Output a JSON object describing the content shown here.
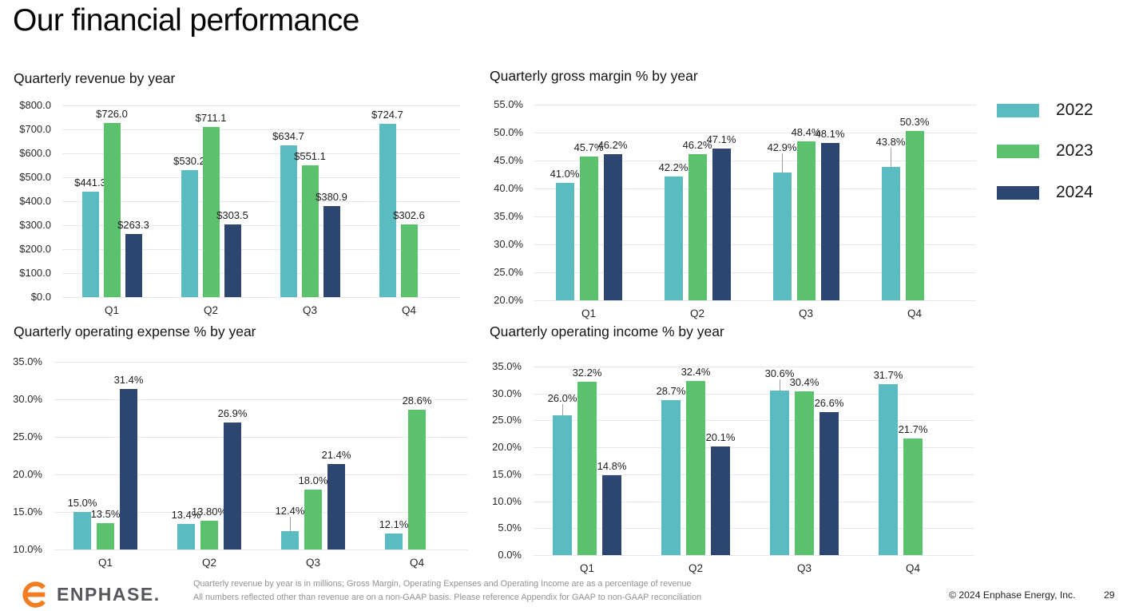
{
  "page": {
    "title": "Our financial performance",
    "logo_text": "ENPHASE.",
    "footnotes": [
      "Quarterly revenue by year is in millions; Gross Margin, Operating Expenses and Operating Income are as a percentage of revenue",
      "All numbers reflected other than revenue are on a non-GAAP basis.  Please reference Appendix for GAAP to non-GAAP reconciliation"
    ],
    "copyright": "© 2024 Enphase Energy, Inc.",
    "page_number": "29"
  },
  "colors": {
    "year2022": "#5ABBC1",
    "year2023": "#5CC16C",
    "year2024": "#2C4671",
    "logo_orange": "#F37D21",
    "gridline": "#e7e8e9"
  },
  "legend": {
    "items": [
      {
        "label": "2022",
        "color": "#5ABBC1"
      },
      {
        "label": "2023",
        "color": "#5CC16C"
      },
      {
        "label": "2024",
        "color": "#2C4671"
      }
    ]
  },
  "chart_data": [
    {
      "id": "revenue",
      "type": "bar",
      "title": "Quarterly revenue by year",
      "categories": [
        "Q1",
        "Q2",
        "Q3",
        "Q4"
      ],
      "y_axis": {
        "min": 0,
        "max": 800,
        "ticks": [
          "$800.0",
          "$700.0",
          "$600.0",
          "$500.0",
          "$400.0",
          "$300.0",
          "$200.0",
          "$100.0",
          "$0.0"
        ]
      },
      "grid": true,
      "legend_position": "right",
      "series": [
        {
          "name": "2022",
          "color": "#5ABBC1",
          "values": [
            441.3,
            530.2,
            634.7,
            724.7
          ],
          "labels": [
            "$441.3",
            "$530.2",
            "$634.7",
            "$724.7"
          ]
        },
        {
          "name": "2023",
          "color": "#5CC16C",
          "values": [
            726.0,
            711.1,
            551.1,
            302.6
          ],
          "labels": [
            "$726.0",
            "$711.1",
            "$551.1",
            "$302.6"
          ]
        },
        {
          "name": "2024",
          "color": "#2C4671",
          "values": [
            263.3,
            303.5,
            380.9,
            null
          ],
          "labels": [
            "$263.3",
            "$303.5",
            "$380.9",
            ""
          ]
        }
      ]
    },
    {
      "id": "gross_margin",
      "type": "bar",
      "title": "Quarterly gross margin % by year",
      "categories": [
        "Q1",
        "Q2",
        "Q3",
        "Q4"
      ],
      "y_axis": {
        "min": 20,
        "max": 55,
        "ticks": [
          "55.0%",
          "50.0%",
          "45.0%",
          "40.0%",
          "35.0%",
          "30.0%",
          "25.0%",
          "20.0%"
        ]
      },
      "grid": true,
      "series": [
        {
          "name": "2022",
          "color": "#5ABBC1",
          "values": [
            41.0,
            42.2,
            42.9,
            43.8
          ],
          "labels": [
            "41.0%",
            "42.2%",
            "42.9%",
            "43.8%"
          ],
          "leaders": [
            false,
            false,
            true,
            true
          ]
        },
        {
          "name": "2023",
          "color": "#5CC16C",
          "values": [
            45.7,
            46.2,
            48.4,
            50.3
          ],
          "labels": [
            "45.7%",
            "46.2%",
            "48.4%",
            "50.3%"
          ]
        },
        {
          "name": "2024",
          "color": "#2C4671",
          "values": [
            46.2,
            47.1,
            48.1,
            null
          ],
          "labels": [
            "46.2%",
            "47.1%",
            "48.1%",
            ""
          ]
        }
      ]
    },
    {
      "id": "opex",
      "type": "bar",
      "title": "Quarterly operating expense % by year",
      "categories": [
        "Q1",
        "Q2",
        "Q3",
        "Q4"
      ],
      "y_axis": {
        "min": 10,
        "max": 35,
        "ticks": [
          "35.0%",
          "30.0%",
          "25.0%",
          "20.0%",
          "15.0%",
          "10.0%"
        ]
      },
      "grid": true,
      "series": [
        {
          "name": "2022",
          "color": "#5ABBC1",
          "values": [
            15.0,
            13.4,
            12.4,
            12.1
          ],
          "labels": [
            "15.0%",
            "13.4%",
            "12.4%",
            "12.1%"
          ],
          "leaders": [
            false,
            false,
            true,
            false
          ]
        },
        {
          "name": "2023",
          "color": "#5CC16C",
          "values": [
            13.5,
            13.8,
            18.0,
            28.6
          ],
          "labels": [
            "13.5%",
            "13.80%",
            "18.0%",
            "28.6%"
          ]
        },
        {
          "name": "2024",
          "color": "#2C4671",
          "values": [
            31.4,
            26.9,
            21.4,
            null
          ],
          "labels": [
            "31.4%",
            "26.9%",
            "21.4%",
            ""
          ]
        }
      ]
    },
    {
      "id": "op_income",
      "type": "bar",
      "title": "Quarterly operating income % by year",
      "categories": [
        "Q1",
        "Q2",
        "Q3",
        "Q4"
      ],
      "y_axis": {
        "min": 0,
        "max": 35,
        "ticks": [
          "35.0%",
          "30.0%",
          "25.0%",
          "20.0%",
          "15.0%",
          "10.0%",
          "5.0%",
          "0.0%"
        ]
      },
      "grid": true,
      "series": [
        {
          "name": "2022",
          "color": "#5ABBC1",
          "values": [
            26.0,
            28.7,
            30.6,
            31.7
          ],
          "labels": [
            "26.0%",
            "28.7%",
            "30.6%",
            "31.7%"
          ],
          "leaders": [
            true,
            false,
            true,
            false
          ]
        },
        {
          "name": "2023",
          "color": "#5CC16C",
          "values": [
            32.2,
            32.4,
            30.4,
            21.7
          ],
          "labels": [
            "32.2%",
            "32.4%",
            "30.4%",
            "21.7%"
          ]
        },
        {
          "name": "2024",
          "color": "#2C4671",
          "values": [
            14.8,
            20.1,
            26.6,
            null
          ],
          "labels": [
            "14.8%",
            "20.1%",
            "26.6%",
            ""
          ]
        }
      ]
    }
  ]
}
